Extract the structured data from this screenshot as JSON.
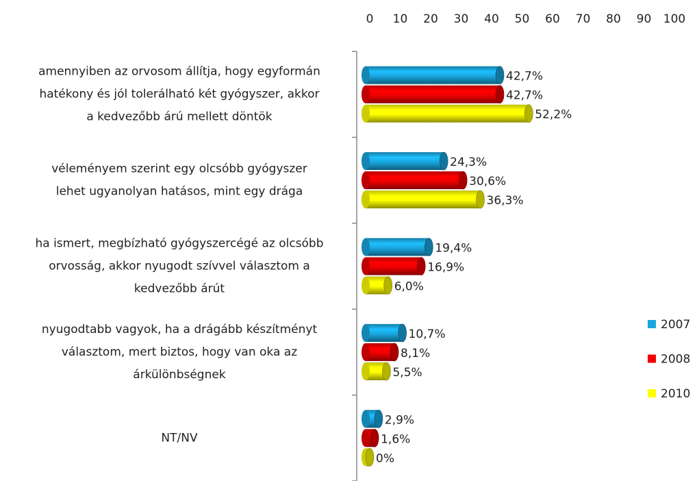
{
  "chart_data": {
    "type": "bar",
    "orientation": "horizontal",
    "categories": [
      [
        "amennyiben az orvosom állítja, hogy egyformán",
        "hatékony és jól tolerálható két gyógyszer, akkor",
        "a kedvezőbb árú mellett döntök"
      ],
      [
        "véleményem szerint egy olcsóbb gyógyszer",
        "lehet ugyanolyan hatásos, mint egy drága"
      ],
      [
        "ha ismert, megbízható gyógyszercégé az olcsóbb",
        "orvosság, akkor nyugodt szívvel választom a",
        "kedvezőbb árút"
      ],
      [
        "nyugodtabb vagyok, ha a drágább készítményt",
        "választom, mert biztos, hogy van oka az",
        "árkülönbségnek"
      ],
      [
        "NT/NV"
      ]
    ],
    "series": [
      {
        "name": "2007",
        "color": "#1aa7e0",
        "values": [
          42.7,
          24.3,
          19.4,
          10.7,
          2.9
        ],
        "value_labels": [
          "42,7%",
          "24,3%",
          "19,4%",
          "10,7%",
          "2,9%"
        ]
      },
      {
        "name": "2008",
        "color": "#f00000",
        "values": [
          42.7,
          30.6,
          16.9,
          8.1,
          1.6
        ],
        "value_labels": [
          "42,7%",
          "30,6%",
          "16,9%",
          "8,1%",
          "1,6%"
        ]
      },
      {
        "name": "2010",
        "color": "#ffff00",
        "values": [
          52.2,
          36.3,
          6.0,
          5.5,
          0
        ],
        "value_labels": [
          "52,2%",
          "36,3%",
          "6,0%",
          "5,5%",
          "0%"
        ]
      }
    ],
    "xlim": [
      0,
      100
    ],
    "xticks": [
      0,
      10,
      20,
      30,
      40,
      50,
      60,
      70,
      80,
      90,
      100
    ],
    "legend": "right"
  }
}
